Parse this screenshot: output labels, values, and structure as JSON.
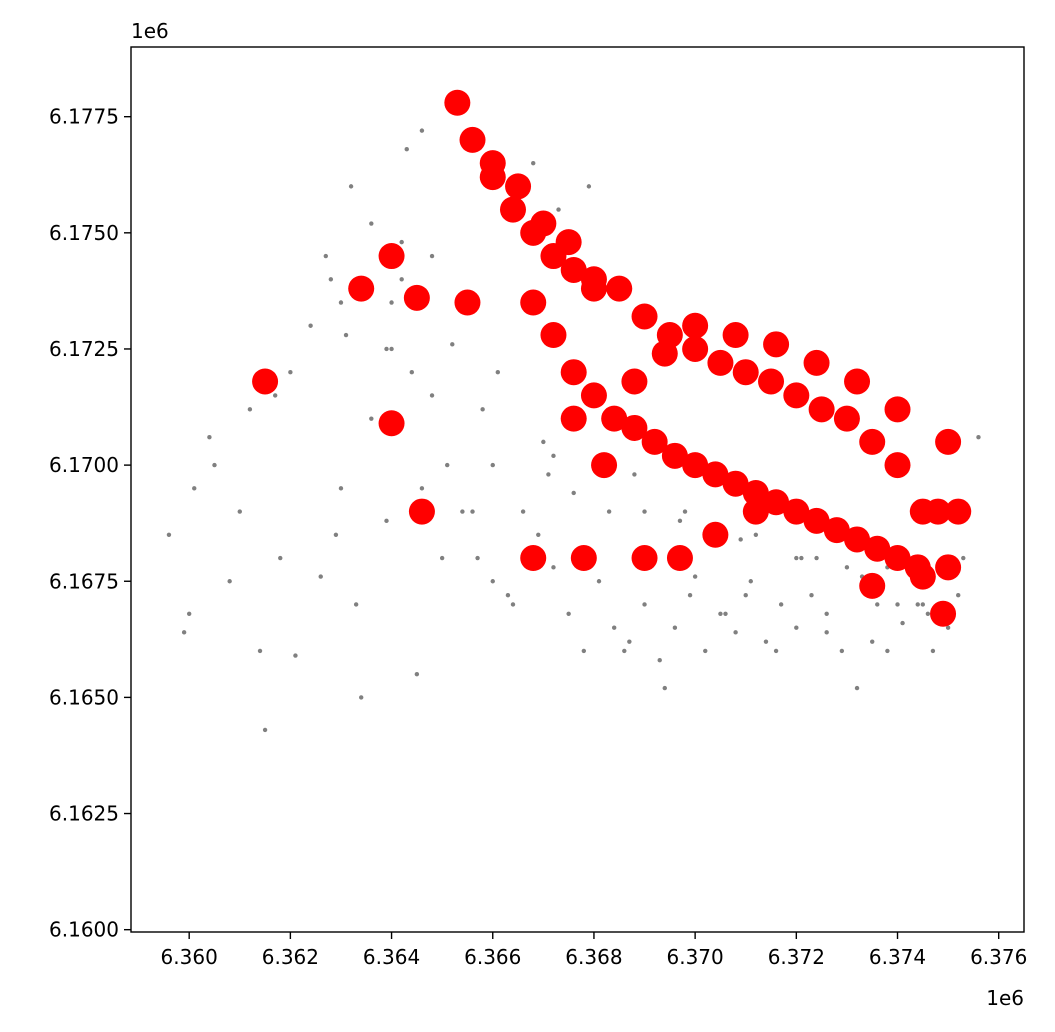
{
  "chart_data": {
    "type": "scatter",
    "title": "",
    "xlabel": "",
    "ylabel": "",
    "xlim": [
      6.35885,
      6.3765
    ],
    "ylim": [
      6.15995,
      6.179
    ],
    "x_offset_label": "1e6",
    "y_offset_label": "1e6",
    "x_ticks": [
      6.36,
      6.362,
      6.364,
      6.366,
      6.368,
      6.37,
      6.372,
      6.374,
      6.376
    ],
    "x_tick_labels": [
      "6.360",
      "6.362",
      "6.364",
      "6.366",
      "6.368",
      "6.370",
      "6.372",
      "6.374",
      "6.376"
    ],
    "y_ticks": [
      6.16,
      6.1625,
      6.165,
      6.1675,
      6.17,
      6.1725,
      6.175,
      6.1775
    ],
    "y_tick_labels": [
      "6.1600",
      "6.1625",
      "6.1650",
      "6.1675",
      "6.1700",
      "6.1725",
      "6.1750",
      "6.1775"
    ],
    "grid": false,
    "legend": "none",
    "series": [
      {
        "color": "#808080",
        "marker": "small-dot",
        "x": [
          6.3596,
          6.3599,
          6.3601,
          6.3605,
          6.3608,
          6.3612,
          6.3615,
          6.3618,
          6.3621,
          6.3624,
          6.3627,
          6.363,
          6.3633,
          6.3636,
          6.3639,
          6.3642,
          6.3645,
          6.3648,
          6.3651,
          6.3654,
          6.3657,
          6.366,
          6.3663,
          6.3666,
          6.3669,
          6.3672,
          6.3675,
          6.3678,
          6.3681,
          6.3684,
          6.3687,
          6.369,
          6.3693,
          6.3696,
          6.3699,
          6.3702,
          6.3705,
          6.3708,
          6.3711,
          6.3714,
          6.3717,
          6.372,
          6.3723,
          6.3726,
          6.3729,
          6.3732,
          6.3735,
          6.3738,
          6.3741,
          6.3744,
          6.3747,
          6.375,
          6.3753,
          6.3756,
          6.36,
          6.361,
          6.362,
          6.363,
          6.364,
          6.365,
          6.366,
          6.367,
          6.368,
          6.369,
          6.37,
          6.371,
          6.372,
          6.373,
          6.374,
          6.3614,
          6.3626,
          6.3634,
          6.3646,
          6.3656,
          6.3664,
          6.3676,
          6.3686,
          6.3694,
          6.3706,
          6.3716,
          6.3726,
          6.3736,
          6.3746,
          6.3632,
          6.3636,
          6.3642,
          6.3648,
          6.3643,
          6.3646,
          6.3668,
          6.3673,
          6.3679,
          6.364,
          6.3628,
          6.3631,
          6.3639,
          6.3652,
          6.3661,
          6.3672,
          6.3688,
          6.3698,
          6.3712,
          6.3724,
          6.3738,
          6.3752,
          6.3604,
          6.3617,
          6.3629,
          6.3644,
          6.3658,
          6.3671,
          6.3683,
          6.3697,
          6.3709,
          6.3721,
          6.3733,
          6.3745
        ],
        "y": [
          6.1685,
          6.1664,
          6.1695,
          6.17,
          6.1675,
          6.1712,
          6.1643,
          6.168,
          6.1659,
          6.173,
          6.1745,
          6.1695,
          6.167,
          6.171,
          6.1688,
          6.174,
          6.1655,
          6.1715,
          6.17,
          6.169,
          6.168,
          6.1675,
          6.1672,
          6.169,
          6.1685,
          6.1678,
          6.1668,
          6.166,
          6.1675,
          6.1665,
          6.1662,
          6.167,
          6.1658,
          6.1665,
          6.1672,
          6.166,
          6.1668,
          6.1664,
          6.1675,
          6.1662,
          6.167,
          6.1665,
          6.1672,
          6.1668,
          6.166,
          6.1652,
          6.1662,
          6.166,
          6.1666,
          6.167,
          6.166,
          6.1665,
          6.168,
          6.1706,
          6.1668,
          6.169,
          6.172,
          6.1735,
          6.1725,
          6.168,
          6.17,
          6.1705,
          6.1715,
          6.169,
          6.1676,
          6.1672,
          6.168,
          6.1678,
          6.167,
          6.166,
          6.1676,
          6.165,
          6.1695,
          6.169,
          6.167,
          6.1694,
          6.166,
          6.1652,
          6.1668,
          6.166,
          6.1664,
          6.167,
          6.1668,
          6.176,
          6.1752,
          6.1748,
          6.1745,
          6.1768,
          6.1772,
          6.1765,
          6.1755,
          6.176,
          6.1735,
          6.174,
          6.1728,
          6.1725,
          6.1726,
          6.172,
          6.1702,
          6.1698,
          6.169,
          6.1685,
          6.168,
          6.1678,
          6.1672,
          6.1706,
          6.1715,
          6.1685,
          6.172,
          6.1712,
          6.1698,
          6.169,
          6.1688,
          6.1684,
          6.168,
          6.1676,
          6.167
        ]
      },
      {
        "color": "#ff0000",
        "marker": "large-dot",
        "x": [
          6.366,
          6.3665,
          6.367,
          6.3675,
          6.368,
          6.3685,
          6.369,
          6.3695,
          6.37,
          6.3705,
          6.371,
          6.3715,
          6.372,
          6.3725,
          6.373,
          6.3735,
          6.374,
          6.3745,
          6.3668,
          6.3672,
          6.3676,
          6.368,
          6.3684,
          6.3688,
          6.3692,
          6.3696,
          6.37,
          6.3704,
          6.3708,
          6.3712,
          6.3716,
          6.372,
          6.3724,
          6.3728,
          6.3732,
          6.3736,
          6.374,
          6.3744,
          6.3748,
          6.3653,
          6.3656,
          6.366,
          6.3664,
          6.3668,
          6.3672,
          6.3676,
          6.368,
          6.364,
          6.3634,
          6.3645,
          6.3655,
          6.3615,
          6.364,
          6.3646,
          6.375,
          6.3752,
          6.3749,
          6.3668,
          6.3678,
          6.369,
          6.3697,
          6.3704,
          6.3712,
          6.3735,
          6.3745,
          6.375,
          6.3682,
          6.3676,
          6.3688,
          6.3694,
          6.37,
          6.3708,
          6.3716,
          6.3724,
          6.3732,
          6.374
        ],
        "y": [
          6.1765,
          6.176,
          6.1752,
          6.1748,
          6.174,
          6.1738,
          6.1732,
          6.1728,
          6.1725,
          6.1722,
          6.172,
          6.1718,
          6.1715,
          6.1712,
          6.171,
          6.1705,
          6.17,
          6.169,
          6.1735,
          6.1728,
          6.172,
          6.1715,
          6.171,
          6.1708,
          6.1705,
          6.1702,
          6.17,
          6.1698,
          6.1696,
          6.1694,
          6.1692,
          6.169,
          6.1688,
          6.1686,
          6.1684,
          6.1682,
          6.168,
          6.1678,
          6.169,
          6.1778,
          6.177,
          6.1762,
          6.1755,
          6.175,
          6.1745,
          6.1742,
          6.1738,
          6.1745,
          6.1738,
          6.1736,
          6.1735,
          6.1718,
          6.1709,
          6.169,
          6.1705,
          6.169,
          6.1668,
          6.168,
          6.168,
          6.168,
          6.168,
          6.1685,
          6.169,
          6.1674,
          6.1676,
          6.1678,
          6.17,
          6.171,
          6.1718,
          6.1724,
          6.173,
          6.1728,
          6.1726,
          6.1722,
          6.1718,
          6.1712
        ]
      }
    ]
  }
}
